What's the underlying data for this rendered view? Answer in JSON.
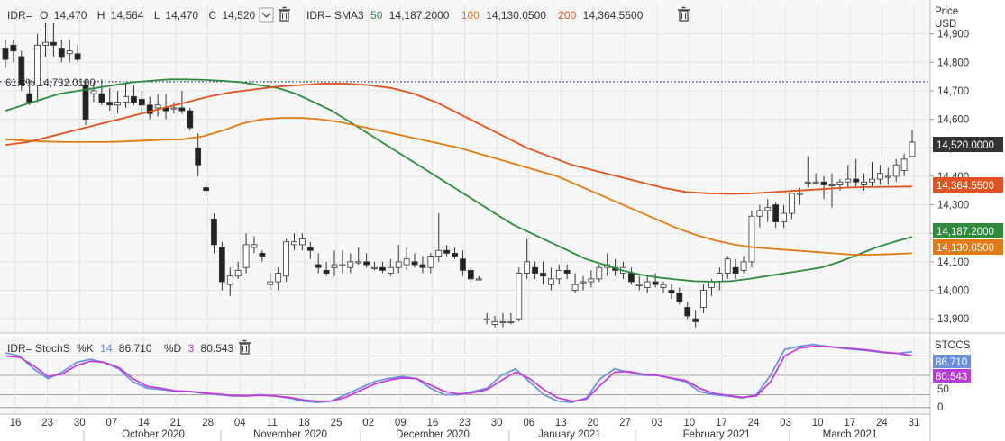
{
  "price_header": {
    "ric": "IDR=",
    "o_label": "O",
    "o_value": "14,470",
    "h_label": "H",
    "h_value": "14,564",
    "l_label": "L",
    "l_value": "14,470",
    "c_label": "C",
    "c_value": "14,520",
    "sma_label": "IDR= SMA3",
    "sma1_period": "50",
    "sma1_value": "14,187.2000",
    "sma2_period": "100",
    "sma2_value": "14,130.0500",
    "sma3_period": "200",
    "sma3_value": "14,364.5500"
  },
  "stoch_header": {
    "label": "IDR= StochS",
    "k_label": "%K",
    "k_period": "14",
    "k_value": "86.710",
    "d_label": "%D",
    "d_period": "3",
    "d_value": "80.543"
  },
  "price_axis": {
    "title_line1": "Price",
    "title_line2": "USD",
    "ticks": [
      "14,900",
      "14,800",
      "14,700",
      "14,600",
      "14,500",
      "14,400",
      "14,300",
      "14,200",
      "14,100",
      "14,000",
      "13,900"
    ],
    "tags": {
      "close": "14,520.0000",
      "sma200": "14,364.5500",
      "sma50": "14,187.2000",
      "sma100": "14,130.0500"
    }
  },
  "stoch_axis": {
    "title": "STOCS",
    "ticks": [
      "50",
      "0"
    ],
    "tags": {
      "k": "86.710",
      "d": "80.543"
    }
  },
  "fib_label": "61.8% 14,732.0100",
  "x_axis": {
    "day_labels": [
      "16",
      "23",
      "30",
      "07",
      "14",
      "21",
      "28",
      "04",
      "11",
      "18",
      "25",
      "02",
      "09",
      "16",
      "23",
      "30",
      "06",
      "13",
      "20",
      "27",
      "03",
      "10",
      "17",
      "24",
      "03",
      "10",
      "17",
      "24",
      "31"
    ],
    "month_labels": [
      "October 2020",
      "November 2020",
      "December 2020",
      "January 2021",
      "February 2021",
      "March 2021"
    ]
  },
  "colors": {
    "sma50": "#2e8b3e",
    "sma100": "#e07b12",
    "sma200": "#e0521f",
    "close_tag": "#333333",
    "stoch_k": "#6b8fdb",
    "stoch_d": "#c23ad6",
    "k_tag": "#6b8fdb",
    "d_tag": "#b83bd6"
  },
  "chart_data": [
    {
      "type": "candlestick",
      "ylim": [
        13850,
        15000
      ],
      "hline": 14732.01,
      "candles": [
        [
          14850,
          14880,
          14780,
          14810
        ],
        [
          14860,
          14880,
          14800,
          14840
        ],
        [
          14820,
          14840,
          14700,
          14720
        ],
        [
          14690,
          14740,
          14650,
          14660
        ],
        [
          14720,
          14900,
          14660,
          14860
        ],
        [
          14860,
          14940,
          14820,
          14870
        ],
        [
          14870,
          14940,
          14820,
          14860
        ],
        [
          14850,
          14880,
          14800,
          14820
        ],
        [
          14830,
          14880,
          14800,
          14840
        ],
        [
          14830,
          14860,
          14800,
          14810
        ],
        [
          14720,
          14740,
          14580,
          14600
        ],
        [
          14690,
          14730,
          14660,
          14700
        ],
        [
          14690,
          14740,
          14650,
          14660
        ],
        [
          14660,
          14710,
          14630,
          14650
        ],
        [
          14650,
          14700,
          14620,
          14660
        ],
        [
          14660,
          14730,
          14640,
          14680
        ],
        [
          14680,
          14720,
          14650,
          14660
        ],
        [
          14670,
          14700,
          14620,
          14650
        ],
        [
          14650,
          14680,
          14600,
          14620
        ],
        [
          14640,
          14690,
          14610,
          14650
        ],
        [
          14640,
          14690,
          14600,
          14630
        ],
        [
          14640,
          14660,
          14620,
          14640
        ],
        [
          14640,
          14700,
          14620,
          14630
        ],
        [
          14630,
          14640,
          14560,
          14570
        ],
        [
          14500,
          14550,
          14400,
          14440
        ],
        [
          14360,
          14380,
          14330,
          14350
        ],
        [
          14250,
          14270,
          14130,
          14160
        ],
        [
          14150,
          14170,
          14000,
          14030
        ],
        [
          14020,
          14080,
          13980,
          14050
        ],
        [
          14050,
          14100,
          14040,
          14070
        ],
        [
          14080,
          14200,
          14060,
          14160
        ],
        [
          14150,
          14190,
          14130,
          14160
        ],
        [
          14130,
          14140,
          14100,
          14120
        ],
        [
          14020,
          14060,
          14000,
          14030
        ],
        [
          14030,
          14080,
          14000,
          14060
        ],
        [
          14050,
          14180,
          14030,
          14170
        ],
        [
          14160,
          14200,
          14140,
          14170
        ],
        [
          14160,
          14200,
          14140,
          14180
        ],
        [
          14150,
          14170,
          14110,
          14140
        ],
        [
          14090,
          14130,
          14060,
          14080
        ],
        [
          14070,
          14100,
          14050,
          14060
        ],
        [
          14080,
          14140,
          14050,
          14090
        ],
        [
          14090,
          14140,
          14060,
          14090
        ],
        [
          14080,
          14130,
          14060,
          14100
        ],
        [
          14100,
          14150,
          14090,
          14100
        ],
        [
          14100,
          14130,
          14080,
          14090
        ],
        [
          14080,
          14100,
          14070,
          14080
        ],
        [
          14080,
          14100,
          14060,
          14070
        ],
        [
          14060,
          14110,
          14050,
          14080
        ],
        [
          14080,
          14160,
          14060,
          14100
        ],
        [
          14090,
          14150,
          14070,
          14110
        ],
        [
          14100,
          14130,
          14080,
          14090
        ],
        [
          14090,
          14120,
          14060,
          14080
        ],
        [
          14080,
          14130,
          14060,
          14120
        ],
        [
          14120,
          14270,
          14100,
          14140
        ],
        [
          14140,
          14160,
          14120,
          14130
        ],
        [
          14130,
          14150,
          14110,
          14120
        ],
        [
          14110,
          14140,
          14050,
          14070
        ],
        [
          14070,
          14080,
          14030,
          14040
        ],
        [
          14040,
          14050,
          14035,
          14040
        ],
        [
          13900,
          13920,
          13880,
          13900
        ],
        [
          13880,
          13910,
          13870,
          13890
        ],
        [
          13890,
          13920,
          13870,
          13890
        ],
        [
          13890,
          13920,
          13880,
          13890
        ],
        [
          13900,
          14080,
          13890,
          14060
        ],
        [
          14060,
          14180,
          14040,
          14100
        ],
        [
          14080,
          14100,
          14040,
          14060
        ],
        [
          14060,
          14100,
          14020,
          14050
        ],
        [
          14020,
          14080,
          14000,
          14040
        ],
        [
          14040,
          14090,
          14020,
          14070
        ],
        [
          14070,
          14090,
          14040,
          14060
        ],
        [
          14000,
          14060,
          13990,
          14020
        ],
        [
          14030,
          14050,
          14000,
          14030
        ],
        [
          14030,
          14070,
          14010,
          14040
        ],
        [
          14040,
          14090,
          14030,
          14080
        ],
        [
          14080,
          14130,
          14050,
          14090
        ],
        [
          14080,
          14110,
          14050,
          14070
        ],
        [
          14060,
          14100,
          14040,
          14080
        ],
        [
          14060,
          14080,
          14020,
          14030
        ],
        [
          14020,
          14050,
          14000,
          14020
        ],
        [
          14010,
          14050,
          13990,
          14030
        ],
        [
          14030,
          14060,
          14010,
          14020
        ],
        [
          14010,
          14030,
          13990,
          14020
        ],
        [
          14000,
          14020,
          13970,
          13990
        ],
        [
          13990,
          14010,
          13950,
          13960
        ],
        [
          13940,
          13960,
          13900,
          13910
        ],
        [
          13900,
          13930,
          13870,
          13890
        ],
        [
          13940,
          14020,
          13920,
          14000
        ],
        [
          14010,
          14040,
          13980,
          14030
        ],
        [
          14030,
          14080,
          14000,
          14060
        ],
        [
          14060,
          14120,
          14040,
          14110
        ],
        [
          14080,
          14110,
          14040,
          14060
        ],
        [
          14070,
          14120,
          14060,
          14100
        ],
        [
          14100,
          14280,
          14080,
          14260
        ],
        [
          14260,
          14300,
          14220,
          14280
        ],
        [
          14280,
          14320,
          14240,
          14290
        ],
        [
          14300,
          14310,
          14220,
          14240
        ],
        [
          14240,
          14300,
          14220,
          14270
        ],
        [
          14270,
          14340,
          14250,
          14340
        ],
        [
          14340,
          14360,
          14300,
          14340
        ],
        [
          14380,
          14470,
          14360,
          14380
        ],
        [
          14380,
          14410,
          14370,
          14380
        ],
        [
          14380,
          14400,
          14320,
          14370
        ],
        [
          14370,
          14410,
          14290,
          14370
        ],
        [
          14370,
          14390,
          14350,
          14380
        ],
        [
          14380,
          14440,
          14360,
          14390
        ],
        [
          14390,
          14460,
          14360,
          14380
        ],
        [
          14370,
          14410,
          14350,
          14380
        ],
        [
          14380,
          14450,
          14360,
          14390
        ],
        [
          14390,
          14440,
          14370,
          14410
        ],
        [
          14400,
          14430,
          14370,
          14400
        ],
        [
          14400,
          14460,
          14380,
          14440
        ],
        [
          14420,
          14480,
          14400,
          14460
        ],
        [
          14470,
          14564,
          14470,
          14520
        ]
      ]
    },
    {
      "type": "line",
      "name": "SMA 50",
      "ylim": [
        13850,
        15000
      ],
      "values": [
        14630,
        14650,
        14670,
        14690,
        14700,
        14710,
        14720,
        14730,
        14735,
        14740,
        14740,
        14738,
        14735,
        14730,
        14720,
        14710,
        14690,
        14660,
        14630,
        14590,
        14550,
        14510,
        14470,
        14430,
        14390,
        14350,
        14310,
        14270,
        14230,
        14200,
        14170,
        14140,
        14110,
        14090,
        14070,
        14055,
        14045,
        14038,
        14032,
        14030,
        14032,
        14040,
        14050,
        14060,
        14070,
        14080,
        14100,
        14125,
        14150,
        14170,
        14187
      ]
    },
    {
      "type": "line",
      "name": "SMA 100",
      "ylim": [
        13850,
        15000
      ],
      "values": [
        14530,
        14525,
        14522,
        14520,
        14520,
        14520,
        14522,
        14525,
        14528,
        14530,
        14540,
        14560,
        14585,
        14600,
        14605,
        14605,
        14600,
        14590,
        14575,
        14560,
        14545,
        14530,
        14515,
        14500,
        14480,
        14460,
        14440,
        14420,
        14400,
        14370,
        14340,
        14310,
        14280,
        14250,
        14220,
        14195,
        14175,
        14160,
        14150,
        14145,
        14140,
        14135,
        14130,
        14125,
        14125,
        14127,
        14130
      ]
    },
    {
      "type": "line",
      "name": "SMA 200",
      "ylim": [
        13850,
        15000
      ],
      "values": [
        14510,
        14520,
        14540,
        14560,
        14580,
        14600,
        14620,
        14640,
        14660,
        14680,
        14695,
        14705,
        14715,
        14720,
        14725,
        14725,
        14720,
        14710,
        14690,
        14660,
        14620,
        14580,
        14540,
        14500,
        14470,
        14440,
        14420,
        14400,
        14380,
        14360,
        14345,
        14340,
        14338,
        14340,
        14345,
        14350,
        14355,
        14360,
        14362,
        14363,
        14364
      ]
    },
    {
      "type": "line",
      "name": "StochS %K 14",
      "ylim": [
        -10,
        110
      ],
      "values": [
        85,
        80,
        60,
        45,
        55,
        70,
        75,
        70,
        60,
        40,
        30,
        28,
        25,
        25,
        22,
        20,
        18,
        18,
        20,
        18,
        15,
        10,
        8,
        10,
        20,
        30,
        40,
        45,
        48,
        45,
        30,
        20,
        20,
        25,
        30,
        50,
        60,
        40,
        20,
        10,
        8,
        15,
        45,
        60,
        55,
        50,
        50,
        45,
        40,
        25,
        20,
        18,
        15,
        20,
        50,
        90,
        95,
        98,
        95,
        92,
        90,
        88,
        85,
        84,
        86.71
      ]
    },
    {
      "type": "line",
      "name": "StochS %D 3",
      "ylim": [
        -10,
        110
      ],
      "values": [
        80,
        78,
        65,
        48,
        52,
        65,
        72,
        70,
        62,
        45,
        33,
        30,
        26,
        25,
        23,
        21,
        19,
        18,
        19,
        18,
        16,
        12,
        10,
        10,
        16,
        26,
        36,
        42,
        46,
        45,
        35,
        25,
        21,
        23,
        28,
        42,
        55,
        45,
        28,
        15,
        10,
        13,
        35,
        55,
        56,
        52,
        50,
        46,
        42,
        30,
        22,
        19,
        16,
        18,
        40,
        80,
        92,
        95,
        95,
        93,
        91,
        89,
        86,
        84,
        80.543
      ]
    }
  ]
}
